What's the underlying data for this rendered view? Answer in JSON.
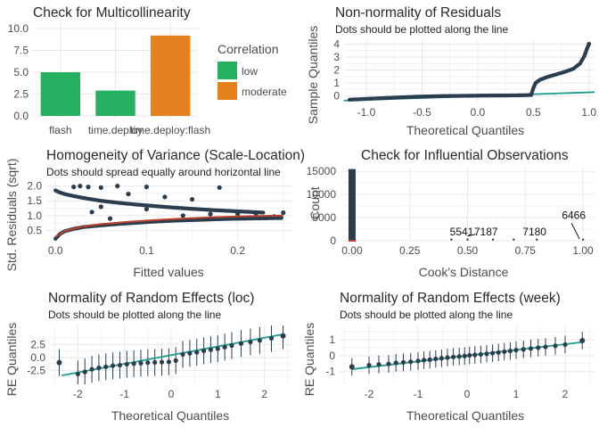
{
  "colors": {
    "low": "#27b062",
    "moderate": "#e5811f",
    "point": "#2b3e50",
    "ref_line": "#1a9c8c",
    "smooth": "#b9412b",
    "grid": "#e9e9e9"
  },
  "chart_data": [
    {
      "id": "multicollinearity",
      "type": "bar",
      "title": "Check for Multicollinearity",
      "categories": [
        "flash",
        "time.deploy",
        "time.deploy:flash"
      ],
      "values": [
        5.0,
        2.9,
        9.2
      ],
      "fill_levels": [
        "low",
        "low",
        "moderate"
      ],
      "ylim": [
        0,
        10
      ],
      "yticks": [
        "0.0",
        "2.5",
        "5.0",
        "7.5",
        "10.0"
      ],
      "legend": {
        "title": "Correlation",
        "items": [
          "low",
          "moderate"
        ],
        "position": "right"
      },
      "grid": true
    },
    {
      "id": "residual_normality",
      "type": "scatter",
      "title": "Non-normality of Residuals",
      "subtitle": "Dots should be plotted along the line",
      "xlabel": "Theoretical Quantiles",
      "ylabel": "Sample Quantiles",
      "xlim": [
        -1.2,
        1.05
      ],
      "ylim": [
        -0.5,
        4.3
      ],
      "xticks": [
        "-1.0",
        "-0.5",
        "0.0",
        "0.5",
        "1.0"
      ],
      "yticks": [
        "0",
        "1",
        "2",
        "3",
        "4"
      ],
      "ref_line": [
        [
          -1.2,
          -0.35
        ],
        [
          1.05,
          0.3
        ]
      ],
      "points": [
        [
          -1.15,
          -0.28
        ],
        [
          -1.0,
          -0.22
        ],
        [
          -0.9,
          -0.18
        ],
        [
          -0.8,
          -0.14
        ],
        [
          -0.7,
          -0.1
        ],
        [
          -0.6,
          -0.07
        ],
        [
          -0.5,
          -0.04
        ],
        [
          -0.4,
          -0.02
        ],
        [
          -0.3,
          0.0
        ],
        [
          -0.2,
          0.01
        ],
        [
          -0.1,
          0.02
        ],
        [
          0.0,
          0.03
        ],
        [
          0.1,
          0.04
        ],
        [
          0.2,
          0.04
        ],
        [
          0.3,
          0.05
        ],
        [
          0.4,
          0.06
        ],
        [
          0.48,
          0.08
        ],
        [
          0.5,
          0.6
        ],
        [
          0.52,
          1.0
        ],
        [
          0.56,
          1.25
        ],
        [
          0.62,
          1.45
        ],
        [
          0.7,
          1.65
        ],
        [
          0.78,
          1.85
        ],
        [
          0.86,
          2.1
        ],
        [
          0.92,
          2.5
        ],
        [
          0.96,
          3.1
        ],
        [
          0.98,
          3.6
        ],
        [
          1.0,
          4.0
        ]
      ],
      "grid": true
    },
    {
      "id": "homogeneity",
      "type": "scatter",
      "title": "Homogeneity of Variance (Scale-Location)",
      "subtitle": "Dots should spread equally around horizontal line",
      "xlabel": "Fitted values",
      "ylabel": "Std. Residuals (sqrt)",
      "xlim": [
        -0.01,
        0.26
      ],
      "ylim": [
        0.15,
        2.2
      ],
      "xticks": [
        "0.0",
        "0.1",
        "0.2"
      ],
      "yticks": [
        "0.5",
        "1.0",
        "1.5",
        "2.0"
      ],
      "lower_band": [
        [
          0.0,
          0.22
        ],
        [
          0.005,
          0.38
        ],
        [
          0.01,
          0.47
        ],
        [
          0.02,
          0.55
        ],
        [
          0.03,
          0.61
        ],
        [
          0.04,
          0.64
        ],
        [
          0.05,
          0.67
        ],
        [
          0.07,
          0.72
        ],
        [
          0.09,
          0.76
        ],
        [
          0.11,
          0.8
        ],
        [
          0.13,
          0.83
        ],
        [
          0.15,
          0.85
        ],
        [
          0.17,
          0.87
        ],
        [
          0.19,
          0.89
        ],
        [
          0.21,
          0.9
        ],
        [
          0.23,
          0.91
        ],
        [
          0.25,
          0.92
        ]
      ],
      "upper_band": [
        [
          0.0,
          1.85
        ],
        [
          0.005,
          1.78
        ],
        [
          0.01,
          1.73
        ],
        [
          0.02,
          1.66
        ],
        [
          0.03,
          1.6
        ],
        [
          0.04,
          1.55
        ],
        [
          0.05,
          1.5
        ],
        [
          0.07,
          1.43
        ],
        [
          0.09,
          1.37
        ],
        [
          0.11,
          1.32
        ],
        [
          0.13,
          1.27
        ],
        [
          0.15,
          1.23
        ],
        [
          0.17,
          1.19
        ],
        [
          0.19,
          1.16
        ],
        [
          0.21,
          1.13
        ],
        [
          0.23,
          1.1
        ]
      ],
      "extra_points": [
        [
          0.02,
          1.97
        ],
        [
          0.027,
          2.0
        ],
        [
          0.036,
          1.97
        ],
        [
          0.05,
          1.95
        ],
        [
          0.068,
          2.0
        ],
        [
          0.1,
          1.97
        ],
        [
          0.18,
          1.95
        ],
        [
          0.25,
          1.1
        ],
        [
          0.15,
          1.55
        ],
        [
          0.12,
          1.63
        ],
        [
          0.08,
          1.73
        ],
        [
          0.05,
          1.3
        ],
        [
          0.04,
          1.12
        ],
        [
          0.1,
          1.22
        ],
        [
          0.2,
          1.06
        ],
        [
          0.22,
          1.0
        ],
        [
          0.24,
          0.97
        ],
        [
          0.06,
          0.9
        ],
        [
          0.14,
          1.0
        ],
        [
          0.17,
          1.05
        ]
      ],
      "smooth": [
        [
          0.0,
          0.28
        ],
        [
          0.01,
          0.48
        ],
        [
          0.03,
          0.63
        ],
        [
          0.05,
          0.71
        ],
        [
          0.08,
          0.79
        ],
        [
          0.11,
          0.85
        ],
        [
          0.14,
          0.9
        ],
        [
          0.17,
          0.94
        ],
        [
          0.2,
          0.97
        ],
        [
          0.23,
          0.99
        ],
        [
          0.25,
          1.0
        ]
      ],
      "grid": true
    },
    {
      "id": "influential",
      "type": "bar",
      "title": "Check for Influential Observations",
      "xlabel": "Cook's Distance",
      "ylabel": "Count",
      "xlim": [
        -0.05,
        1.05
      ],
      "ylim": [
        0,
        16000
      ],
      "xticks": [
        "0.00",
        "0.25",
        "0.50",
        "0.75",
        "1.00"
      ],
      "yticks": [
        "0",
        "5000",
        "10000",
        "15000"
      ],
      "bars": [
        {
          "x": 0.0,
          "count": 15500
        }
      ],
      "labels": [
        {
          "text": "5541",
          "x": 0.475,
          "y": 1200
        },
        {
          "text": "7187",
          "x": 0.58,
          "y": 1200
        },
        {
          "text": "7180",
          "x": 0.79,
          "y": 1200
        },
        {
          "text": "6466",
          "x": 0.96,
          "y": 4700
        }
      ],
      "grid": true
    },
    {
      "id": "re_loc",
      "type": "scatter",
      "title": "Normality of Random Effects (loc)",
      "subtitle": "Dots should be plotted along the line",
      "xlabel": "Theoretical Quantiles",
      "ylabel": "RE Quantiles",
      "xlim": [
        -2.6,
        2.6
      ],
      "ylim": [
        -5.2,
        6.2
      ],
      "xticks": [
        "-2",
        "-1",
        "0",
        "1",
        "2"
      ],
      "yticks": [
        "-2.5",
        "0.0",
        "2.5"
      ],
      "ref_line": [
        [
          -2.35,
          -3.5
        ],
        [
          2.35,
          4.4
        ]
      ],
      "points": [
        [
          -2.4,
          -1.0
        ],
        [
          -2.0,
          -3.2
        ],
        [
          -1.85,
          -2.8
        ],
        [
          -1.7,
          -2.3
        ],
        [
          -1.55,
          -2.0
        ],
        [
          -1.4,
          -1.8
        ],
        [
          -1.25,
          -1.6
        ],
        [
          -1.1,
          -1.5
        ],
        [
          -0.95,
          -1.3
        ],
        [
          -0.8,
          -1.2
        ],
        [
          -0.65,
          -1.1
        ],
        [
          -0.5,
          -1.0
        ],
        [
          -0.35,
          -0.95
        ],
        [
          -0.2,
          -0.9
        ],
        [
          -0.05,
          -0.85
        ],
        [
          0.1,
          -0.6
        ],
        [
          0.25,
          0.6
        ],
        [
          0.4,
          0.8
        ],
        [
          0.55,
          1.0
        ],
        [
          0.7,
          1.3
        ],
        [
          0.85,
          1.5
        ],
        [
          1.0,
          1.7
        ],
        [
          1.15,
          2.0
        ],
        [
          1.3,
          2.3
        ],
        [
          1.5,
          2.7
        ],
        [
          1.7,
          3.0
        ],
        [
          1.9,
          3.3
        ],
        [
          2.15,
          3.7
        ],
        [
          2.4,
          4.2
        ]
      ],
      "error_halfwidth": 2.6,
      "grid": true
    },
    {
      "id": "re_week",
      "type": "scatter",
      "title": "Normality of Random Effects (week)",
      "subtitle": "Dots should be plotted along the line",
      "xlabel": "Theoretical Quantiles",
      "ylabel": "RE Quantiles",
      "xlim": [
        -2.6,
        2.6
      ],
      "ylim": [
        -1.8,
        1.9
      ],
      "xticks": [
        "-2",
        "-1",
        "0",
        "1",
        "2"
      ],
      "yticks": [
        "-1",
        "0",
        "1"
      ],
      "ref_line": [
        [
          -2.35,
          -0.85
        ],
        [
          2.35,
          0.85
        ]
      ],
      "points": [
        [
          -2.35,
          -0.7
        ],
        [
          -2.0,
          -0.6
        ],
        [
          -1.8,
          -0.55
        ],
        [
          -1.6,
          -0.52
        ],
        [
          -1.45,
          -0.45
        ],
        [
          -1.3,
          -0.42
        ],
        [
          -1.15,
          -0.38
        ],
        [
          -1.0,
          -0.33
        ],
        [
          -0.88,
          -0.28
        ],
        [
          -0.76,
          -0.25
        ],
        [
          -0.64,
          -0.2
        ],
        [
          -0.52,
          -0.16
        ],
        [
          -0.4,
          -0.12
        ],
        [
          -0.28,
          -0.08
        ],
        [
          -0.16,
          -0.05
        ],
        [
          -0.05,
          -0.02
        ],
        [
          0.05,
          0.02
        ],
        [
          0.16,
          0.05
        ],
        [
          0.28,
          0.08
        ],
        [
          0.4,
          0.12
        ],
        [
          0.52,
          0.16
        ],
        [
          0.64,
          0.2
        ],
        [
          0.76,
          0.25
        ],
        [
          0.88,
          0.3
        ],
        [
          1.0,
          0.35
        ],
        [
          1.15,
          0.4
        ],
        [
          1.3,
          0.45
        ],
        [
          1.45,
          0.5
        ],
        [
          1.6,
          0.55
        ],
        [
          1.8,
          0.62
        ],
        [
          2.0,
          0.7
        ],
        [
          2.35,
          0.95
        ]
      ],
      "error_halfwidth": 0.55,
      "grid": true
    }
  ]
}
